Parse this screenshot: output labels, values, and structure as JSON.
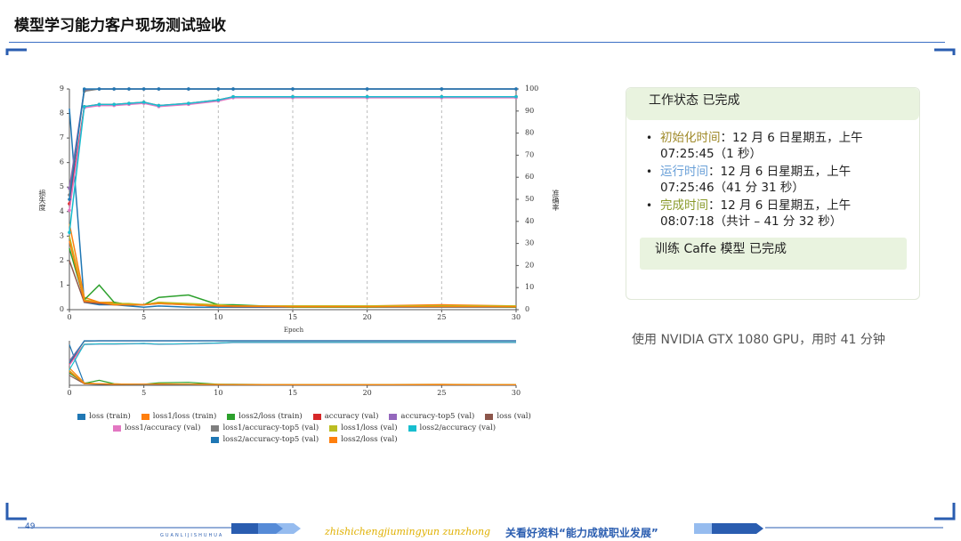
{
  "header": {
    "title": "模型学习能力客户现场测试验收"
  },
  "chart_data": {
    "type": "line",
    "xlabel": "Epoch",
    "ylabel": "损失度",
    "y2label": "准确率",
    "x": [
      0,
      1,
      2,
      3,
      4,
      5,
      6,
      8,
      10,
      11,
      15,
      20,
      25,
      30
    ],
    "xlim": [
      0,
      30
    ],
    "xticks": [
      0,
      5,
      10,
      15,
      20,
      25,
      30
    ],
    "ylim": [
      0,
      9
    ],
    "yticks": [
      0,
      1,
      2,
      3,
      4,
      5,
      6,
      7,
      8,
      9
    ],
    "y2lim": [
      0,
      100
    ],
    "y2ticks": [
      0,
      10,
      20,
      30,
      40,
      50,
      60,
      70,
      80,
      90,
      100
    ],
    "grid": "x",
    "series": [
      {
        "name": "loss (train)",
        "color": "#1f77b4",
        "values": [
          8.2,
          0.3,
          0.2,
          0.2,
          0.15,
          0.1,
          0.15,
          0.1,
          0.1,
          0.1,
          0.1,
          0.1,
          0.1,
          0.1
        ]
      },
      {
        "name": "loss1/loss (train)",
        "color": "#ff7f0e",
        "values": [
          3.5,
          0.5,
          0.3,
          0.3,
          0.2,
          0.2,
          0.3,
          0.2,
          0.15,
          0.15,
          0.15,
          0.15,
          0.2,
          0.15
        ]
      },
      {
        "name": "loss2/loss (train)",
        "color": "#2ca02c",
        "values": [
          2.5,
          0.4,
          1.0,
          0.3,
          0.2,
          0.2,
          0.5,
          0.6,
          0.2,
          0.2,
          0.1,
          0.1,
          0.15,
          0.1
        ]
      },
      {
        "name": "accuracy (val)",
        "color": "#d62728",
        "axis": "y2",
        "values": [
          48,
          92,
          93,
          93,
          93.5,
          94,
          92.5,
          93.5,
          95,
          96.5,
          96.5,
          96.5,
          96.5,
          96.5
        ]
      },
      {
        "name": "accuracy-top5 (val)",
        "color": "#9467bd",
        "axis": "y2",
        "values": [
          55,
          99.5,
          100,
          100,
          100,
          100,
          100,
          100,
          100,
          100,
          100,
          100,
          100,
          100
        ]
      },
      {
        "name": "loss (val)",
        "color": "#8c564b",
        "values": [
          2.0,
          0.3,
          0.25,
          0.2,
          0.2,
          0.2,
          0.25,
          0.2,
          0.15,
          0.12,
          0.12,
          0.12,
          0.12,
          0.12
        ]
      },
      {
        "name": "loss1/accuracy (val)",
        "color": "#e377c2",
        "axis": "y2",
        "values": [
          45,
          91.5,
          92.5,
          92.5,
          93,
          93.5,
          92,
          93,
          94.5,
          96,
          96,
          96,
          96,
          96
        ]
      },
      {
        "name": "loss1/accuracy-top5 (val)",
        "color": "#7f7f7f",
        "axis": "y2",
        "values": [
          52,
          99,
          100,
          100,
          100,
          100,
          100,
          100,
          100,
          100,
          100,
          100,
          100,
          100
        ]
      },
      {
        "name": "loss1/loss (val)",
        "color": "#bcbd22",
        "values": [
          3.0,
          0.4,
          0.3,
          0.25,
          0.25,
          0.2,
          0.3,
          0.25,
          0.2,
          0.15,
          0.15,
          0.15,
          0.15,
          0.15
        ]
      },
      {
        "name": "loss2/accuracy (val)",
        "color": "#17becf",
        "axis": "y2",
        "values": [
          35,
          92,
          93,
          93,
          93.5,
          94,
          92.5,
          93.5,
          95,
          96.5,
          96.5,
          96.5,
          96.5,
          96.5
        ]
      },
      {
        "name": "loss2/accuracy-top5 (val)",
        "color": "#1f77b4",
        "axis": "y2",
        "values": [
          50,
          100,
          100,
          100,
          100,
          100,
          100,
          100,
          100,
          100,
          100,
          100,
          100,
          100
        ]
      },
      {
        "name": "loss2/loss (val)",
        "color": "#ff7f0e",
        "values": [
          2.8,
          0.35,
          0.3,
          0.2,
          0.2,
          0.2,
          0.25,
          0.2,
          0.15,
          0.15,
          0.12,
          0.12,
          0.12,
          0.12
        ]
      }
    ]
  },
  "status": {
    "title": "工作状态 已完成",
    "items": [
      {
        "label": "初始化时间",
        "color": "#a08a2a",
        "text": "：12 月 6 日星期五，上午 07:25:45（1 秒）"
      },
      {
        "label": "运行时间",
        "color": "#6aa0d8",
        "text": "：12 月 6 日星期五，上午 07:25:46（41 分 31 秒）"
      },
      {
        "label": "完成时间",
        "color": "#8a9a2a",
        "text": "：12 月 6 日星期五，上午 08:07:18（共计 – 41 分 32 秒）"
      }
    ],
    "task": "训练 Caffe 模型 已完成"
  },
  "note": "使用 NVIDIA GTX 1080 GPU，用时 41 分钟",
  "footer": {
    "page": "49",
    "tag": "GUANLIJISHUHUA",
    "pinyin": "zhishichengjiumingyun zunzhong",
    "slogan": "关看好资料“能力成就职业发展”"
  }
}
